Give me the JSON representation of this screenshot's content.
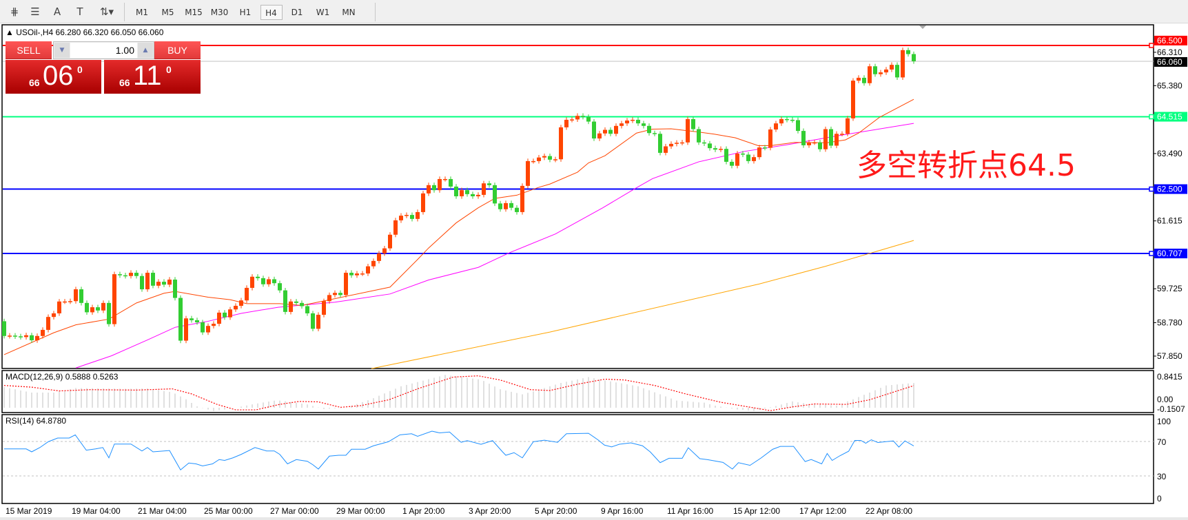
{
  "toolbar": {
    "tools": [
      {
        "icon": "elliott-wave-icon",
        "glyph": "⋕"
      },
      {
        "icon": "fibo-lines-icon",
        "glyph": "☰"
      },
      {
        "icon": "text-icon",
        "glyph": "A"
      },
      {
        "icon": "text-label-icon",
        "glyph": "T"
      },
      {
        "icon": "arrows-dropdown-icon",
        "glyph": "⇅▾"
      }
    ],
    "timeframes": [
      "M1",
      "M5",
      "M15",
      "M30",
      "H1",
      "H4",
      "D1",
      "W1",
      "MN"
    ],
    "active_timeframe": "H4"
  },
  "chart": {
    "symbol_line": "▲ USOil-,H4  66.280 66.320 66.050 66.060",
    "annotation": "多空转折点64.5",
    "trade_panel": {
      "sell_label": "SELL",
      "buy_label": "BUY",
      "volume": "1.00",
      "sell_price": {
        "small": "66",
        "big": "06",
        "sup": "0"
      },
      "buy_price": {
        "small": "66",
        "big": "11",
        "sup": "0"
      }
    }
  },
  "colors": {
    "bull": "#ff4500",
    "bear": "#32cd32",
    "ma_fast": "#ff4500",
    "ma_mid": "#ff00ff",
    "ma_slow": "#ffa500",
    "rsi": "#1e90ff",
    "macd_hist": "#c0c0c0",
    "macd_signal": "#ff0000"
  },
  "levels": [
    {
      "price": 66.5,
      "label": "66.500",
      "color": "#ff0000",
      "text": "#ffffff"
    },
    {
      "price": 64.515,
      "label": "64.515",
      "color": "#00ff7f",
      "text": "#ffffff"
    },
    {
      "price": 62.5,
      "label": "62.500",
      "color": "#0000ff",
      "text": "#ffffff"
    },
    {
      "price": 60.707,
      "label": "60.707",
      "color": "#0000ff",
      "text": "#ffffff"
    }
  ],
  "bid": {
    "price": 66.06,
    "label": "66.060"
  },
  "price_axis": [
    "66.310",
    "65.380",
    "63.490",
    "61.615",
    "59.725",
    "58.780",
    "57.850"
  ],
  "time_axis": [
    "15 Mar 2019",
    "19 Mar 04:00",
    "21 Mar 04:00",
    "25 Mar 00:00",
    "27 Mar 00:00",
    "29 Mar 00:00",
    "1 Apr 20:00",
    "3 Apr 20:00",
    "5 Apr 20:00",
    "9 Apr 16:00",
    "11 Apr 16:00",
    "15 Apr 12:00",
    "17 Apr 12:00",
    "22 Apr 08:00"
  ],
  "chart_data": {
    "type": "candlestick",
    "first_open": 58.82,
    "close": [
      58.41,
      58.42,
      58.4,
      58.38,
      58.43,
      58.29,
      58.41,
      58.58,
      58.94,
      59.04,
      59.37,
      59.37,
      59.38,
      59.71,
      59.33,
      59.07,
      59.21,
      59.12,
      59.33,
      58.74,
      60.13,
      60.1,
      60.08,
      60.17,
      60.08,
      59.71,
      60.17,
      59.81,
      59.92,
      59.84,
      59.98,
      59.47,
      58.28,
      58.9,
      58.85,
      58.79,
      58.51,
      58.69,
      58.75,
      59.06,
      58.93,
      59.15,
      59.25,
      59.4,
      59.75,
      60.06,
      60.02,
      59.85,
      59.99,
      59.88,
      59.68,
      59.08,
      59.37,
      59.33,
      59.24,
      59.04,
      58.61,
      59.0,
      59.38,
      59.55,
      59.61,
      59.55,
      60.17,
      60.1,
      60.15,
      60.15,
      60.35,
      60.5,
      60.71,
      60.85,
      61.23,
      61.63,
      61.76,
      61.78,
      61.67,
      61.86,
      62.38,
      62.61,
      62.47,
      62.78,
      62.78,
      62.57,
      62.3,
      62.47,
      62.36,
      62.3,
      62.34,
      62.66,
      62.61,
      62.1,
      61.94,
      62.11,
      61.98,
      61.86,
      62.59,
      63.28,
      63.28,
      63.38,
      63.42,
      63.32,
      63.33,
      64.22,
      64.43,
      64.44,
      64.54,
      64.51,
      64.38,
      63.91,
      64.05,
      64.15,
      64.04,
      64.26,
      64.33,
      64.41,
      64.43,
      64.33,
      64.26,
      64.06,
      64.04,
      63.51,
      63.69,
      63.76,
      63.79,
      63.8,
      64.45,
      64.17,
      63.8,
      63.77,
      63.64,
      63.6,
      63.62,
      63.26,
      63.15,
      63.49,
      63.46,
      63.28,
      63.39,
      63.66,
      63.65,
      64.16,
      64.33,
      64.45,
      64.43,
      64.42,
      64.12,
      63.72,
      63.8,
      63.8,
      63.61,
      64.17,
      63.71,
      64.04,
      64.04,
      64.47,
      65.52,
      65.6,
      65.45,
      65.92,
      65.7,
      65.75,
      65.83,
      65.96,
      65.61,
      66.37,
      66.26,
      66.06
    ],
    "ma_fast": [
      [
        1,
        57.89
      ],
      [
        10,
        58.5
      ],
      [
        14,
        58.72
      ],
      [
        20,
        58.88
      ],
      [
        25,
        59.33
      ],
      [
        30,
        59.6
      ],
      [
        32,
        59.65
      ],
      [
        38,
        59.49
      ],
      [
        42,
        59.42
      ],
      [
        45,
        59.31
      ],
      [
        51,
        59.31
      ],
      [
        55,
        59.26
      ],
      [
        61,
        59.45
      ],
      [
        71,
        59.77
      ],
      [
        76,
        60.54
      ],
      [
        78,
        60.86
      ],
      [
        83,
        61.56
      ],
      [
        87,
        61.98
      ],
      [
        90,
        62.24
      ],
      [
        94,
        62.33
      ],
      [
        98,
        62.55
      ],
      [
        100,
        62.64
      ],
      [
        105,
        62.97
      ],
      [
        107,
        63.23
      ],
      [
        110,
        63.43
      ],
      [
        115.7,
        64.06
      ],
      [
        118.6,
        64.17
      ],
      [
        122,
        64.18
      ],
      [
        126.9,
        64.09
      ],
      [
        129.8,
        64.03
      ],
      [
        133.6,
        63.93
      ],
      [
        137.8,
        63.71
      ],
      [
        140,
        63.71
      ],
      [
        144.4,
        63.8
      ],
      [
        150.3,
        63.79
      ],
      [
        153.6,
        63.87
      ],
      [
        156,
        64.06
      ],
      [
        159.8,
        64.5
      ],
      [
        166,
        65.0
      ]
    ],
    "ma_mid": [
      [
        14,
        57.52
      ],
      [
        20.5,
        57.86
      ],
      [
        27,
        58.3
      ],
      [
        32,
        58.65
      ],
      [
        38,
        58.82
      ],
      [
        44,
        59.04
      ],
      [
        50.7,
        59.21
      ],
      [
        61,
        59.35
      ],
      [
        71,
        59.58
      ],
      [
        78,
        59.97
      ],
      [
        87,
        60.32
      ],
      [
        92.7,
        60.73
      ],
      [
        101,
        61.25
      ],
      [
        109.6,
        61.98
      ],
      [
        115.5,
        62.52
      ],
      [
        118.6,
        62.79
      ],
      [
        127,
        63.26
      ],
      [
        135.3,
        63.55
      ],
      [
        143.6,
        63.75
      ],
      [
        152,
        63.98
      ],
      [
        166,
        64.33
      ]
    ],
    "ma_slow": [
      [
        67.6,
        57.5
      ],
      [
        100,
        58.52
      ],
      [
        138,
        59.86
      ],
      [
        150,
        60.35
      ],
      [
        166,
        61.07
      ]
    ],
    "macd": {
      "label": "MACD(12,26,9) 0.5888 0.5263",
      "axis": [
        "0.8415",
        "0.00",
        "-0.1507"
      ],
      "range": [
        -0.1507,
        0.8415
      ],
      "hist": [
        [
          1,
          0.49
        ],
        [
          6,
          0.36
        ],
        [
          10,
          0.36
        ],
        [
          14,
          0.47
        ],
        [
          23,
          0.45
        ],
        [
          27,
          0.46
        ],
        [
          31.5,
          0.37
        ],
        [
          34,
          0.2
        ],
        [
          36,
          0.03
        ],
        [
          39,
          -0.08
        ],
        [
          43,
          0
        ],
        [
          46,
          0.08
        ],
        [
          50.5,
          0.18
        ],
        [
          56,
          0.08
        ],
        [
          59,
          -0.03
        ],
        [
          63,
          0
        ],
        [
          67.5,
          0.2
        ],
        [
          73,
          0.51
        ],
        [
          78.6,
          0.7
        ],
        [
          81,
          0.78
        ],
        [
          87.5,
          0.67
        ],
        [
          91,
          0.44
        ],
        [
          95,
          0.32
        ],
        [
          97,
          0.39
        ],
        [
          102,
          0.59
        ],
        [
          107,
          0.73
        ],
        [
          110,
          0.65
        ],
        [
          116,
          0.51
        ],
        [
          120,
          0.32
        ],
        [
          123,
          0.17
        ],
        [
          128,
          0.12
        ],
        [
          130,
          0.05
        ],
        [
          134,
          -0.04
        ],
        [
          137,
          -0.08
        ],
        [
          141,
          0.04
        ],
        [
          144,
          0.15
        ],
        [
          147,
          0.09
        ],
        [
          152,
          0.05
        ],
        [
          155,
          0.2
        ],
        [
          158,
          0.36
        ],
        [
          161,
          0.53
        ],
        [
          166,
          0.5888
        ]
      ],
      "signal": [
        [
          1,
          0.53
        ],
        [
          6,
          0.49
        ],
        [
          11,
          0.4
        ],
        [
          16.6,
          0.43
        ],
        [
          25,
          0.42
        ],
        [
          31.5,
          0.45
        ],
        [
          35,
          0.33
        ],
        [
          39.6,
          0.08
        ],
        [
          43,
          -0.05
        ],
        [
          46.7,
          -0.05
        ],
        [
          51,
          0.08
        ],
        [
          54.5,
          0.15
        ],
        [
          58,
          0.14
        ],
        [
          62,
          0.01
        ],
        [
          65.7,
          0.05
        ],
        [
          70.8,
          0.19
        ],
        [
          76,
          0.45
        ],
        [
          82.5,
          0.73
        ],
        [
          87,
          0.76
        ],
        [
          91,
          0.66
        ],
        [
          96.5,
          0.43
        ],
        [
          100,
          0.41
        ],
        [
          105,
          0.56
        ],
        [
          110,
          0.68
        ],
        [
          113.6,
          0.66
        ],
        [
          119,
          0.53
        ],
        [
          124.6,
          0.33
        ],
        [
          131,
          0.13
        ],
        [
          136,
          0.02
        ],
        [
          140,
          -0.07
        ],
        [
          144,
          0.02
        ],
        [
          148,
          0.09
        ],
        [
          153.8,
          0.08
        ],
        [
          158,
          0.19
        ],
        [
          166,
          0.5263
        ]
      ]
    },
    "rsi": {
      "label": "RSI(14) 64.8780",
      "axis": [
        "100",
        "70",
        "30",
        "0"
      ],
      "levels": [
        70,
        30
      ],
      "values": [
        [
          1,
          61.4
        ],
        [
          5,
          61.4
        ],
        [
          6,
          58
        ],
        [
          7.5,
          63
        ],
        [
          9,
          69.7
        ],
        [
          10.7,
          74
        ],
        [
          12.8,
          74
        ],
        [
          13.9,
          77.7
        ],
        [
          15.9,
          59.9
        ],
        [
          17.6,
          61.4
        ],
        [
          18.9,
          63
        ],
        [
          20,
          51
        ],
        [
          21,
          67
        ],
        [
          24,
          67
        ],
        [
          26,
          59
        ],
        [
          27,
          63
        ],
        [
          28,
          58
        ],
        [
          31,
          59.5
        ],
        [
          33,
          37
        ],
        [
          34.5,
          45
        ],
        [
          35.8,
          44
        ],
        [
          37,
          41.6
        ],
        [
          38.8,
          44
        ],
        [
          40,
          49
        ],
        [
          41,
          48
        ],
        [
          42.5,
          51
        ],
        [
          44,
          55
        ],
        [
          46.5,
          63
        ],
        [
          48.6,
          59
        ],
        [
          50,
          59
        ],
        [
          51,
          55
        ],
        [
          52.4,
          44
        ],
        [
          54,
          49
        ],
        [
          56,
          47
        ],
        [
          57,
          43
        ],
        [
          58,
          38
        ],
        [
          60,
          53
        ],
        [
          61.7,
          54
        ],
        [
          63,
          54
        ],
        [
          64,
          61
        ],
        [
          66.5,
          61
        ],
        [
          68,
          65
        ],
        [
          70.7,
          69.7
        ],
        [
          72.8,
          77.7
        ],
        [
          74.9,
          79
        ],
        [
          76,
          76
        ],
        [
          78.6,
          82
        ],
        [
          80,
          80
        ],
        [
          81.8,
          81
        ],
        [
          83.9,
          69
        ],
        [
          85,
          71
        ],
        [
          87.5,
          66.7
        ],
        [
          89.6,
          71
        ],
        [
          91.4,
          58
        ],
        [
          92,
          54
        ],
        [
          93.5,
          57
        ],
        [
          95,
          51
        ],
        [
          97,
          69.7
        ],
        [
          99,
          71.5
        ],
        [
          101.4,
          69
        ],
        [
          103,
          79
        ],
        [
          107,
          79.5
        ],
        [
          108.7,
          72
        ],
        [
          109.9,
          65.8
        ],
        [
          111.2,
          63.7
        ],
        [
          112.6,
          66.8
        ],
        [
          114.7,
          68.4
        ],
        [
          116.8,
          65
        ],
        [
          118.2,
          57.9
        ],
        [
          120,
          45.4
        ],
        [
          121.6,
          50.5
        ],
        [
          124,
          50.5
        ],
        [
          125.1,
          62.7
        ],
        [
          127.2,
          50
        ],
        [
          128.6,
          48.9
        ],
        [
          131.4,
          45.7
        ],
        [
          133.1,
          38
        ],
        [
          134.2,
          45.4
        ],
        [
          136.3,
          42.3
        ],
        [
          138.3,
          50.8
        ],
        [
          140.4,
          60.9
        ],
        [
          141.8,
          64.3
        ],
        [
          144.2,
          64.3
        ],
        [
          146.3,
          46.7
        ],
        [
          147.4,
          49.1
        ],
        [
          149.3,
          44
        ],
        [
          150.3,
          56
        ],
        [
          151.2,
          48
        ],
        [
          152.6,
          53.4
        ],
        [
          154.2,
          58.7
        ],
        [
          155.3,
          71.2
        ],
        [
          156.4,
          71.2
        ],
        [
          157.3,
          68
        ],
        [
          158.3,
          72
        ],
        [
          159.5,
          68.8
        ],
        [
          162.3,
          70.7
        ],
        [
          163.3,
          63.5
        ],
        [
          164.4,
          70.7
        ],
        [
          166,
          64.878
        ]
      ]
    }
  }
}
